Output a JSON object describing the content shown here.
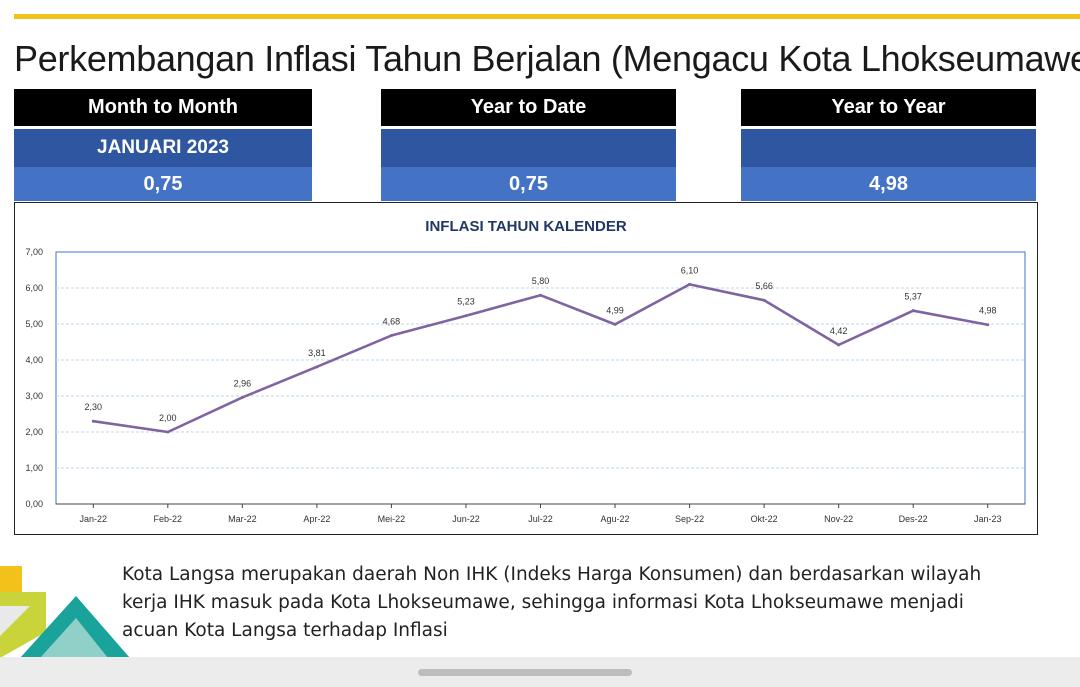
{
  "page": {
    "title": "Perkembangan Inflasi Tahun Berjalan (Mengacu Kota Lhokseumawe)"
  },
  "cards": [
    {
      "header": "Month to Month",
      "period": "JANUARI 2023",
      "value": "0,75"
    },
    {
      "header": "Year to Date",
      "period": "",
      "value": "0,75"
    },
    {
      "header": "Year to Year",
      "period": "",
      "value": "4,98"
    }
  ],
  "chart_data": {
    "type": "line",
    "title": "INFLASI TAHUN KALENDER",
    "categories": [
      "Jan-22",
      "Feb-22",
      "Mar-22",
      "Apr-22",
      "Mei-22",
      "Jun-22",
      "Jul-22",
      "Agu-22",
      "Sep-22",
      "Okt-22",
      "Nov-22",
      "Des-22",
      "Jan-23"
    ],
    "values": [
      2.3,
      2.0,
      2.96,
      3.81,
      4.68,
      5.23,
      5.8,
      4.99,
      6.1,
      5.66,
      4.42,
      5.37,
      4.98
    ],
    "value_labels": [
      "2,30",
      "2,00",
      "2,96",
      "3,81",
      "4,68",
      "5,23",
      "5,80",
      "4,99",
      "6,10",
      "5,66",
      "4,42",
      "5,37",
      "4,98"
    ],
    "yticks": [
      "0,00",
      "1,00",
      "2,00",
      "3,00",
      "4,00",
      "5,00",
      "6,00",
      "7,00"
    ],
    "ylim": [
      0,
      7
    ],
    "grid": true,
    "legend": "none",
    "line_color": "#8064a2"
  },
  "note": {
    "text": "Kota Langsa merupakan daerah Non IHK (Indeks Harga Konsumen) dan berdasarkan wilayah kerja IHK masuk pada Kota Lhokseumawe, sehingga informasi Kota Lhokseumawe menjadi acuan Kota Langsa terhadap Inflasi"
  },
  "colors": {
    "accent": "#f2c21b",
    "header_bg": "#000000",
    "period_bg": "#2f56a1",
    "value_bg": "#4472c4"
  }
}
